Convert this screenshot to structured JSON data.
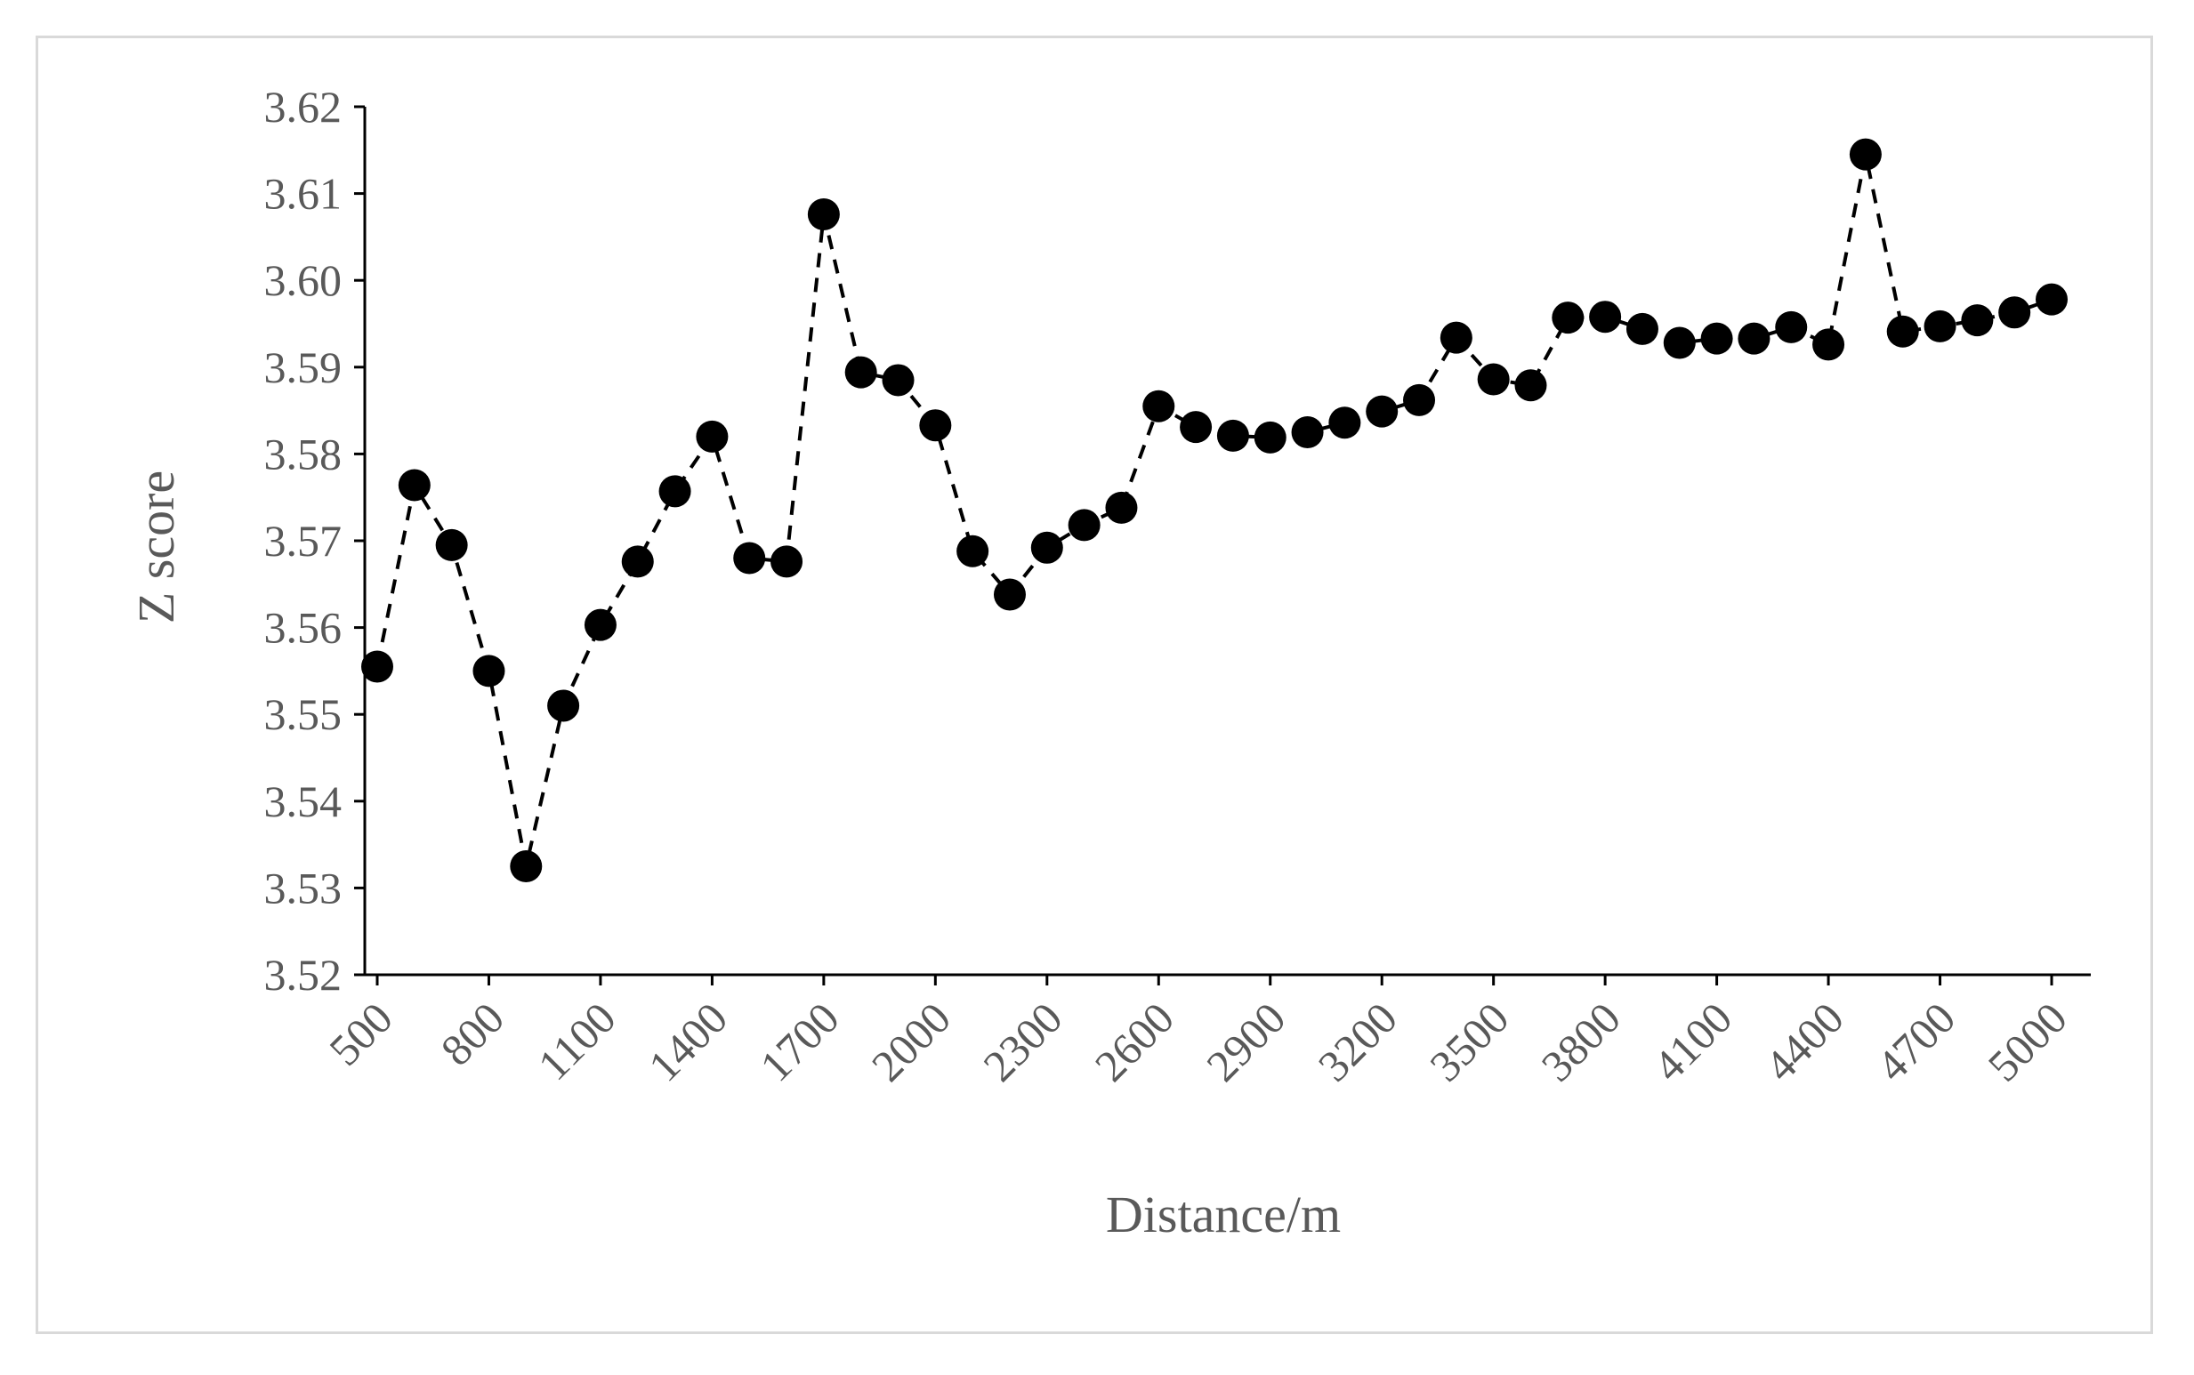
{
  "chart_data": {
    "type": "line",
    "title": "",
    "xlabel": "Distance/m",
    "ylabel": "Z score",
    "xlim": [
      500,
      5000
    ],
    "ylim": [
      3.52,
      3.62
    ],
    "y_ticks": [
      "3.52",
      "3.53",
      "3.54",
      "3.55",
      "3.56",
      "3.57",
      "3.58",
      "3.59",
      "3.60",
      "3.61",
      "3.62"
    ],
    "x_ticks": [
      "500",
      "800",
      "1100",
      "1400",
      "1700",
      "2000",
      "2300",
      "2600",
      "2900",
      "3200",
      "3500",
      "3800",
      "4100",
      "4400",
      "4700",
      "5000"
    ],
    "grid": false,
    "line_style": "dashed",
    "marker": "filled-circle",
    "color": "#000000",
    "x": [
      500,
      600,
      700,
      800,
      900,
      1000,
      1100,
      1200,
      1300,
      1400,
      1500,
      1600,
      1700,
      1800,
      1900,
      2000,
      2100,
      2200,
      2300,
      2400,
      2500,
      2600,
      2700,
      2800,
      2900,
      3000,
      3100,
      3200,
      3300,
      3400,
      3500,
      3600,
      3700,
      3800,
      3900,
      4000,
      4100,
      4200,
      4300,
      4400,
      4500,
      4600,
      4700,
      4800,
      4900,
      5000
    ],
    "y": [
      3.5555,
      3.5764,
      3.5695,
      3.555,
      3.5325,
      3.551,
      3.5603,
      3.5676,
      3.5757,
      3.582,
      3.568,
      3.5676,
      3.6076,
      3.5894,
      3.5885,
      3.5833,
      3.5688,
      3.5638,
      3.5692,
      3.5718,
      3.5738,
      3.5855,
      3.5831,
      3.5821,
      3.5819,
      3.5825,
      3.5836,
      3.5849,
      3.5862,
      3.5934,
      3.5886,
      3.5879,
      3.5957,
      3.5958,
      3.5944,
      3.5928,
      3.5933,
      3.5933,
      3.5946,
      3.5926,
      3.6145,
      3.5941,
      3.5947,
      3.5954,
      3.5963,
      3.5978
    ]
  }
}
